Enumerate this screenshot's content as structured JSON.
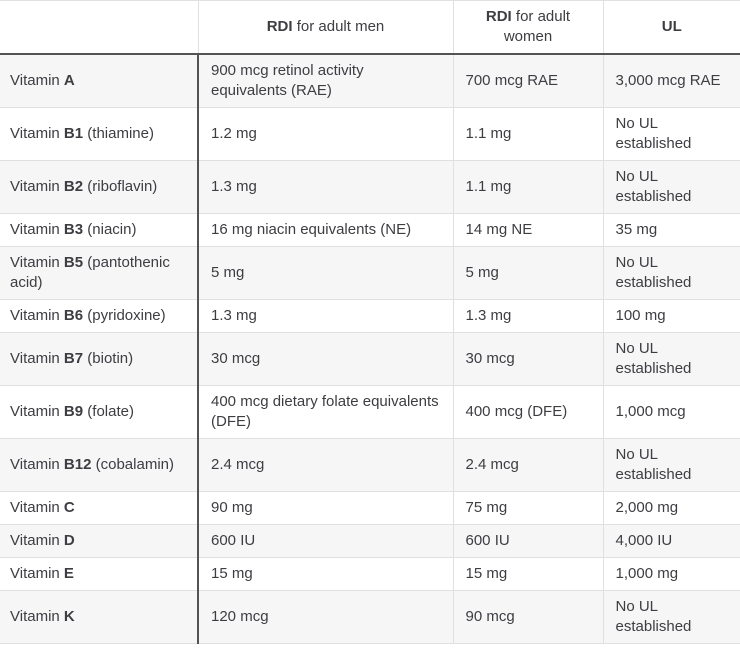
{
  "theme": {
    "text_color": "#3d3d42",
    "border_dark": "#535353",
    "border_light": "#e0e0e1",
    "stripe_bg": "#f6f6f7",
    "white_bg": "#ffffff"
  },
  "chart_data": {
    "type": "table",
    "title": "",
    "columns": [
      "",
      "RDI for adult men",
      "RDI for adult women",
      "UL"
    ],
    "rows": [
      [
        "Vitamin A",
        "900 mcg retinol activity equivalents (RAE)",
        "700 mcg RAE",
        "3,000 mcg RAE"
      ],
      [
        "Vitamin B1 (thiamine)",
        "1.2 mg",
        "1.1 mg",
        "No UL established"
      ],
      [
        "Vitamin B2 (riboflavin)",
        "1.3 mg",
        "1.1 mg",
        "No UL established"
      ],
      [
        "Vitamin B3 (niacin)",
        "16 mg niacin equivalents (NE)",
        "14 mg NE",
        "35 mg"
      ],
      [
        "Vitamin B5 (pantothenic acid)",
        "5 mg",
        "5 mg",
        "No UL established"
      ],
      [
        "Vitamin B6 (pyridoxine)",
        "1.3 mg",
        "1.3 mg",
        "100 mg"
      ],
      [
        "Vitamin B7 (biotin)",
        "30 mcg",
        "30 mcg",
        "No UL established"
      ],
      [
        "Vitamin B9 (folate)",
        "400 mcg dietary folate equivalents (DFE)",
        "400 mcg (DFE)",
        "1,000 mcg"
      ],
      [
        "Vitamin B12 (cobalamin)",
        "2.4 mcg",
        "2.4 mcg",
        "No UL established"
      ],
      [
        "Vitamin C",
        "90 mg",
        "75 mg",
        "2,000 mg"
      ],
      [
        "Vitamin D",
        "600 IU",
        "600 IU",
        "4,000 IU"
      ],
      [
        "Vitamin E",
        "15 mg",
        "15 mg",
        "1,000 mg"
      ],
      [
        "Vitamin K",
        "120 mcg",
        "90 mcg",
        "No UL established"
      ]
    ]
  },
  "table": {
    "header": {
      "vitamin": "",
      "men": {
        "strong": "RDI",
        "rest": " for adult men"
      },
      "women": {
        "strong": "RDI",
        "rest": " for adult women"
      },
      "ul": {
        "strong": "UL",
        "rest": ""
      }
    },
    "rows": [
      {
        "prefix": "Vitamin",
        "code": "A",
        "note": "",
        "men": "900 mcg retinol activity equivalents (RAE)",
        "women": "700 mcg RAE",
        "ul": "3,000 mcg RAE"
      },
      {
        "prefix": "Vitamin",
        "code": "B1",
        "note": "(thiamine)",
        "men": "1.2 mg",
        "women": "1.1 mg",
        "ul": "No UL established"
      },
      {
        "prefix": "Vitamin",
        "code": "B2",
        "note": "(riboflavin)",
        "men": "1.3 mg",
        "women": "1.1 mg",
        "ul": "No UL established"
      },
      {
        "prefix": "Vitamin",
        "code": "B3",
        "note": "(niacin)",
        "men": "16 mg niacin equivalents (NE)",
        "women": "14 mg NE",
        "ul": "35 mg"
      },
      {
        "prefix": "Vitamin",
        "code": "B5",
        "note": "(pantothenic acid)",
        "men": "5 mg",
        "women": "5 mg",
        "ul": "No UL established"
      },
      {
        "prefix": "Vitamin",
        "code": "B6",
        "note": "(pyridoxine)",
        "men": "1.3 mg",
        "women": "1.3 mg",
        "ul": "100 mg"
      },
      {
        "prefix": "Vitamin",
        "code": "B7",
        "note": "(biotin)",
        "men": "30 mcg",
        "women": "30 mcg",
        "ul": "No UL established"
      },
      {
        "prefix": "Vitamin",
        "code": "B9",
        "note": "(folate)",
        "men": "400 mcg dietary folate equivalents (DFE)",
        "women": "400 mcg (DFE)",
        "ul": "1,000 mcg"
      },
      {
        "prefix": "Vitamin",
        "code": "B12",
        "note": "(cobalamin)",
        "men": "2.4 mcg",
        "women": "2.4 mcg",
        "ul": "No UL established"
      },
      {
        "prefix": "Vitamin",
        "code": "C",
        "note": "",
        "men": "90 mg",
        "women": "75 mg",
        "ul": "2,000 mg"
      },
      {
        "prefix": "Vitamin",
        "code": "D",
        "note": "",
        "men": "600 IU",
        "women": "600 IU",
        "ul": "4,000 IU"
      },
      {
        "prefix": "Vitamin",
        "code": "E",
        "note": "",
        "men": "15 mg",
        "women": "15 mg",
        "ul": "1,000 mg"
      },
      {
        "prefix": "Vitamin",
        "code": "K",
        "note": "",
        "men": "120 mcg",
        "women": "90 mcg",
        "ul": "No UL established"
      }
    ]
  }
}
